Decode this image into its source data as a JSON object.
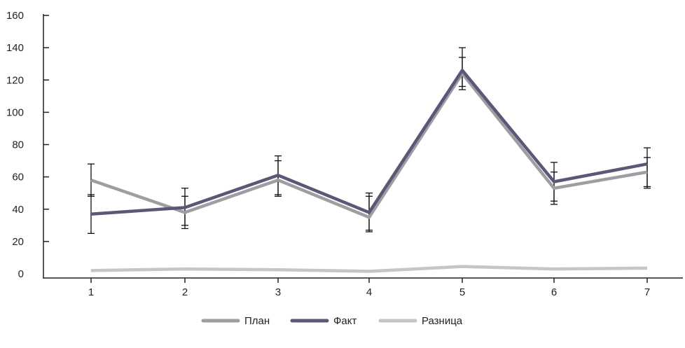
{
  "chart_data": {
    "type": "line",
    "categories": [
      "1",
      "2",
      "3",
      "4",
      "5",
      "6",
      "7"
    ],
    "ylim": [
      0,
      160
    ],
    "yticks": [
      0,
      20,
      40,
      60,
      80,
      100,
      120,
      140,
      160
    ],
    "grid": false,
    "legend_position": "bottom-center",
    "series": [
      {
        "name": "План",
        "color": "#9e9ea2",
        "values": [
          58,
          38,
          58,
          35,
          124,
          53,
          63
        ],
        "error_low": [
          48,
          28,
          48,
          26,
          114,
          45,
          54
        ],
        "error_high": [
          68,
          48,
          70,
          48,
          134,
          63,
          72
        ]
      },
      {
        "name": "Факт",
        "color": "#5f5677",
        "values": [
          37,
          41,
          61,
          38,
          126,
          57,
          68
        ],
        "error_low": [
          25,
          30,
          49,
          27,
          116,
          43,
          53
        ],
        "error_high": [
          49,
          53,
          73,
          50,
          140,
          69,
          78
        ]
      },
      {
        "name": "Разница",
        "color": "#c6c6c8",
        "values": [
          2,
          3,
          2.5,
          1.5,
          4.5,
          3,
          3.5
        ]
      }
    ]
  }
}
